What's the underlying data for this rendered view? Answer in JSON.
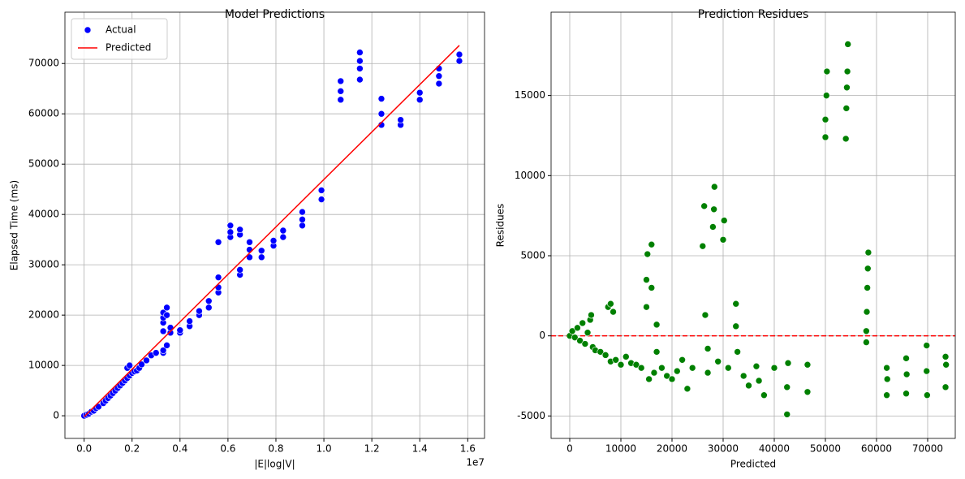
{
  "chart_data": [
    {
      "type": "scatter",
      "title": "Model Predictions",
      "x_label": "|E|log|V|",
      "y_label": "Elapsed Time (ms)",
      "x_offset_label": "1e7",
      "xlim": [
        -0.08,
        1.67
      ],
      "ylim": [
        -4500,
        80200
      ],
      "xticks": [
        {
          "value": 0,
          "label": "0.0"
        },
        {
          "value": 0.2,
          "label": "0.2"
        },
        {
          "value": 0.4,
          "label": "0.4"
        },
        {
          "value": 0.6,
          "label": "0.6"
        },
        {
          "value": 0.8,
          "label": "0.8"
        },
        {
          "value": 1.0,
          "label": "1.0"
        },
        {
          "value": 1.2,
          "label": "1.2"
        },
        {
          "value": 1.4,
          "label": "1.4"
        },
        {
          "value": 1.6,
          "label": "1.6"
        }
      ],
      "yticks": [
        0,
        10000,
        20000,
        30000,
        40000,
        50000,
        60000,
        70000
      ],
      "grid": true,
      "legend": "upper left",
      "series": [
        {
          "name": "Actual",
          "type": "scatter",
          "color": "#0000ff",
          "x": [
            0,
            0.01,
            0.02,
            0.03,
            0.04,
            0.05,
            0.06,
            0.08,
            0.09,
            0.1,
            0.11,
            0.12,
            0.13,
            0.14,
            0.15,
            0.16,
            0.17,
            0.18,
            0.18,
            0.19,
            0.19,
            0.2,
            0.21,
            0.22,
            0.23,
            0.24,
            0.26,
            0.28,
            0.3,
            0.33,
            0.33,
            0.33,
            0.33,
            0.33,
            0.33,
            0.345,
            0.345,
            0.345,
            0.36,
            0.36,
            0.4,
            0.4,
            0.44,
            0.44,
            0.48,
            0.48,
            0.52,
            0.52,
            0.56,
            0.56,
            0.56,
            0.56,
            0.61,
            0.61,
            0.61,
            0.65,
            0.65,
            0.65,
            0.65,
            0.69,
            0.69,
            0.69,
            0.74,
            0.74,
            0.79,
            0.79,
            0.83,
            0.83,
            0.91,
            0.91,
            0.91,
            0.99,
            0.99,
            1.07,
            1.07,
            1.07,
            1.15,
            1.15,
            1.15,
            1.15,
            1.24,
            1.24,
            1.24,
            1.32,
            1.32,
            1.4,
            1.4,
            1.48,
            1.48,
            1.48,
            1.565,
            1.565
          ],
          "values": [
            0,
            200,
            400,
            800,
            1000,
            1500,
            1800,
            2500,
            3000,
            3500,
            4000,
            4500,
            5000,
            5500,
            6000,
            6500,
            7000,
            7500,
            9500,
            8000,
            10000,
            8500,
            8800,
            9000,
            9500,
            10200,
            11000,
            12000,
            12500,
            12500,
            13000,
            16800,
            18500,
            19500,
            20500,
            14000,
            20000,
            21500,
            16500,
            17500,
            16500,
            17000,
            17800,
            18800,
            20000,
            20800,
            21500,
            22800,
            24500,
            25500,
            27500,
            34500,
            35500,
            36500,
            37800,
            28000,
            29000,
            36000,
            37000,
            31500,
            33000,
            34500,
            31500,
            32800,
            33800,
            34800,
            35500,
            36800,
            37800,
            39000,
            40500,
            43000,
            44800,
            62800,
            64500,
            66500,
            66800,
            69000,
            70500,
            72200,
            57800,
            60000,
            63000,
            57800,
            58800,
            62800,
            64200,
            66000,
            67500,
            69000,
            70500,
            71800
          ]
        },
        {
          "name": "Predicted",
          "type": "line",
          "color": "#ff0000",
          "x": [
            0,
            1.565
          ],
          "values": [
            -200,
            73600
          ]
        }
      ]
    },
    {
      "type": "scatter",
      "title": "Prediction Residues",
      "x_label": "Predicted",
      "y_label": "Residues",
      "xlim": [
        -3650,
        75400
      ],
      "ylim": [
        -6400,
        20200
      ],
      "xticks": [
        0,
        10000,
        20000,
        30000,
        40000,
        50000,
        60000,
        70000
      ],
      "yticks": [
        -5000,
        0,
        5000,
        10000,
        15000
      ],
      "grid": true,
      "hline": {
        "value": 0,
        "color": "#ff0000",
        "style": "dashed"
      },
      "series": [
        {
          "type": "scatter",
          "color": "#008000",
          "x": [
            0,
            500,
            1000,
            1500,
            2000,
            2500,
            3000,
            3500,
            4000,
            4500,
            4200,
            5000,
            6000,
            7000,
            7500,
            8000,
            8500,
            8000,
            9000,
            10000,
            11000,
            12000,
            13000,
            14000,
            15000,
            15000,
            15200,
            15500,
            16000,
            16000,
            16500,
            17000,
            17000,
            18000,
            19000,
            20000,
            21000,
            22000,
            23000,
            24000,
            26000,
            26300,
            26500,
            27000,
            27000,
            28000,
            28200,
            28300,
            29000,
            30000,
            30200,
            31000,
            32500,
            32500,
            32800,
            34000,
            35000,
            36500,
            37000,
            38000,
            40000,
            42500,
            42700,
            42500,
            46500,
            46500,
            50000,
            50000,
            50200,
            50300,
            54000,
            54100,
            54200,
            54300,
            54400,
            58000,
            58000,
            58100,
            58200,
            58300,
            58400,
            62000,
            62000,
            62100,
            65800,
            65800,
            65900,
            69800,
            69800,
            69900,
            73500,
            73500,
            73600
          ],
          "values": [
            0,
            300,
            -100,
            500,
            -300,
            800,
            -500,
            200,
            1000,
            -700,
            1300,
            -900,
            -1000,
            -1200,
            1800,
            2000,
            1500,
            -1600,
            -1500,
            -1800,
            -1300,
            -1700,
            -1800,
            -2000,
            1800,
            3500,
            5100,
            -2700,
            3000,
            5700,
            -2300,
            700,
            -1000,
            -2000,
            -2500,
            -2700,
            -2200,
            -1500,
            -3300,
            -2000,
            5600,
            8100,
            1300,
            -800,
            -2300,
            6800,
            7900,
            9300,
            -1600,
            6000,
            7200,
            -2000,
            600,
            2000,
            -1000,
            -2500,
            -3100,
            -1900,
            -2800,
            -3700,
            -2000,
            -4900,
            -1700,
            -3200,
            -1800,
            -3500,
            12400,
            13500,
            15000,
            16500,
            12300,
            14200,
            15500,
            16500,
            18200,
            -400,
            300,
            1500,
            3000,
            4200,
            5200,
            -2000,
            -3700,
            -2700,
            -1400,
            -3600,
            -2400,
            -600,
            -2200,
            -3700,
            -1300,
            -3200,
            -1800
          ]
        }
      ]
    }
  ]
}
